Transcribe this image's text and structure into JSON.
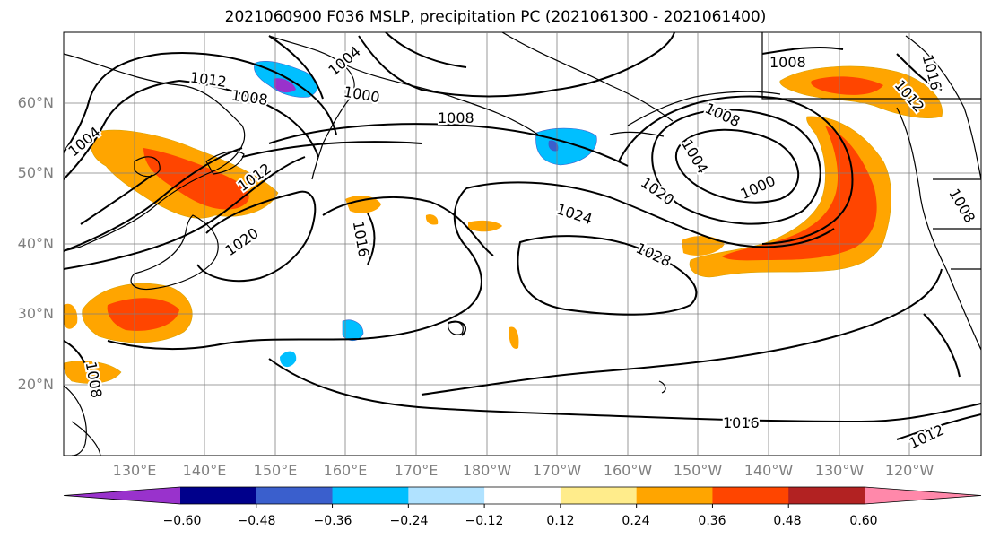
{
  "title": "2021060900 F036 MSLP, precipitation PC (2021061300 - 2021061400)",
  "lat_labels": [
    "60°N",
    "50°N",
    "40°N",
    "30°N",
    "20°N"
  ],
  "lon_labels": [
    "130°E",
    "140°E",
    "150°E",
    "160°E",
    "170°E",
    "180°W",
    "170°W",
    "160°W",
    "150°W",
    "140°W",
    "130°W",
    "120°W"
  ],
  "isobar_labels": [
    {
      "text": "1012",
      "rot": 8
    },
    {
      "text": "1008",
      "rot": 8
    },
    {
      "text": "1004",
      "rot": -40
    },
    {
      "text": "1000",
      "rot": 10
    },
    {
      "text": "1008",
      "rot": 0
    },
    {
      "text": "1004",
      "rot": -40
    },
    {
      "text": "1012",
      "rot": -35
    },
    {
      "text": "1020",
      "rot": -35
    },
    {
      "text": "1016",
      "rot": 80
    },
    {
      "text": "1008",
      "rot": 25
    },
    {
      "text": "1004",
      "rot": 60
    },
    {
      "text": "1000",
      "rot": -25
    },
    {
      "text": "1020",
      "rot": 35
    },
    {
      "text": "1024",
      "rot": 18
    },
    {
      "text": "1028",
      "rot": 25
    },
    {
      "text": "1008",
      "rot": 0
    },
    {
      "text": "1012",
      "rot": 50
    },
    {
      "text": "1016",
      "rot": 75
    },
    {
      "text": "1008",
      "rot": 60
    },
    {
      "text": "1016",
      "rot": 0
    },
    {
      "text": "1012",
      "rot": -25
    },
    {
      "text": "1008",
      "rot": 80
    }
  ],
  "colorbar": {
    "colors": [
      "#9932cc",
      "#00008b",
      "#3a5fcd",
      "#00bfff",
      "#b0e2ff",
      "#ffffff",
      "#ffec8b",
      "#ffa500",
      "#ff4500",
      "#b22222",
      "#ff88aa"
    ],
    "tick_labels": [
      "−0.60",
      "−0.48",
      "−0.36",
      "−0.24",
      "−0.12",
      "0.12",
      "0.24",
      "0.36",
      "0.48",
      "0.60"
    ]
  },
  "field_colors": {
    "orange_light": "#ffec8b",
    "orange": "#ffa500",
    "red": "#ff4500",
    "blue": "#00bfff",
    "light_blue": "#b0e2ff",
    "purple": "#9932cc"
  }
}
